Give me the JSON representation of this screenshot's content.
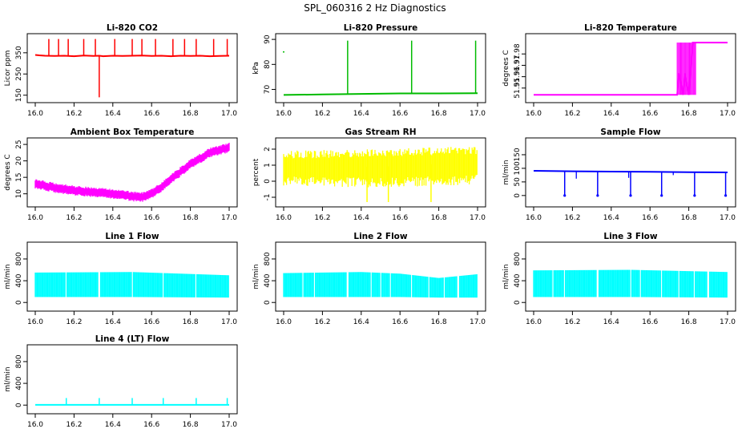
{
  "figure": {
    "title": "SPL_060316  2 Hz Diagnostics"
  },
  "chart_data": [
    {
      "type": "line",
      "title": "Li-820 CO2",
      "ylabel": "Licor ppm",
      "color": "#ff0000",
      "xlim": [
        16.0,
        17.0
      ],
      "ylim": [
        130,
        425
      ],
      "xticks": [
        "16.0",
        "16.2",
        "16.4",
        "16.6",
        "16.8",
        "17.0"
      ],
      "xtick_values": [
        16.0,
        16.2,
        16.4,
        16.6,
        16.8,
        17.0
      ],
      "yticks": [
        "150",
        "250",
        "350"
      ],
      "ytick_values": [
        150,
        250,
        350
      ],
      "x": [
        16.0,
        16.02,
        16.05,
        16.1,
        16.15,
        16.2,
        16.25,
        16.3,
        16.33,
        16.35,
        16.4,
        16.45,
        16.5,
        16.55,
        16.6,
        16.65,
        16.7,
        16.75,
        16.8,
        16.85,
        16.9,
        16.95,
        17.0
      ],
      "y": [
        340,
        338,
        336,
        335,
        336,
        334,
        337,
        335,
        336,
        334,
        336,
        335,
        336,
        337,
        335,
        336,
        334,
        336,
        335,
        336,
        334,
        335,
        336
      ],
      "spikes_up": [
        16.07,
        16.12,
        16.17,
        16.25,
        16.31,
        16.41,
        16.5,
        16.55,
        16.62,
        16.71,
        16.77,
        16.83,
        16.92,
        16.99
      ],
      "spike_up_value": 415,
      "spikes_down": [
        16.33
      ],
      "spike_down_value": 140
    },
    {
      "type": "line",
      "title": "Li-820 Pressure",
      "ylabel": "kPa",
      "color": "#00bb00",
      "xlim": [
        16.0,
        17.0
      ],
      "ylim": [
        66,
        91
      ],
      "xticks": [
        "16.0",
        "16.2",
        "16.4",
        "16.6",
        "16.8",
        "17.0"
      ],
      "xtick_values": [
        16.0,
        16.2,
        16.4,
        16.6,
        16.8,
        17.0
      ],
      "yticks": [
        "70",
        "80",
        "90"
      ],
      "ytick_values": [
        70,
        80,
        90
      ],
      "x": [
        16.0,
        16.2,
        16.4,
        16.6,
        16.8,
        17.0
      ],
      "y": [
        67.8,
        68.0,
        68.2,
        68.4,
        68.4,
        68.5
      ],
      "spikes_up": [
        16.33,
        16.66,
        16.99
      ],
      "spike_up_value": 89.5,
      "outliers": [
        [
          16.0,
          85
        ]
      ]
    },
    {
      "type": "line",
      "title": "Li-820 Temperature",
      "ylabel": "degrees C",
      "color": "#ff00ff",
      "xlim": [
        16.0,
        17.0
      ],
      "ylim": [
        51.94,
        51.995
      ],
      "xticks": [
        "16.0",
        "16.2",
        "16.4",
        "16.6",
        "16.8",
        "17.0"
      ],
      "xtick_values": [
        16.0,
        16.2,
        16.4,
        16.6,
        16.8,
        17.0
      ],
      "yticks": [
        "51.95",
        "51.96",
        "51.97",
        "51.98"
      ],
      "ytick_values": [
        51.95,
        51.96,
        51.97,
        51.98
      ],
      "x": [
        16.0,
        16.74,
        16.75,
        16.77,
        16.78,
        16.8,
        16.82,
        16.84,
        17.0
      ],
      "y": [
        51.944,
        51.944,
        51.963,
        51.944,
        51.963,
        51.944,
        51.99,
        51.99,
        51.99
      ],
      "noise_band": [
        [
          16.74,
          16.84,
          51.944,
          51.99
        ]
      ]
    },
    {
      "type": "line",
      "title": "Ambient Box Temperature",
      "ylabel": "degrees C",
      "color": "#ff00ff",
      "xlim": [
        16.0,
        17.0
      ],
      "ylim": [
        7,
        26
      ],
      "xticks": [
        "16.0",
        "16.2",
        "16.4",
        "16.6",
        "16.8",
        "17.0"
      ],
      "xtick_values": [
        16.0,
        16.2,
        16.4,
        16.6,
        16.8,
        17.0
      ],
      "yticks": [
        "10",
        "15",
        "20",
        "25"
      ],
      "ytick_values": [
        10,
        15,
        20,
        25
      ],
      "x": [
        16.0,
        16.05,
        16.1,
        16.2,
        16.3,
        16.4,
        16.5,
        16.55,
        16.6,
        16.65,
        16.7,
        16.8,
        16.9,
        17.0
      ],
      "y": [
        13,
        12.5,
        11.8,
        11.0,
        10.5,
        10.0,
        9.2,
        9.0,
        10.0,
        12.0,
        14.5,
        19.0,
        22.5,
        24.0
      ],
      "band": 1.2
    },
    {
      "type": "line",
      "title": "Gas Stream RH",
      "ylabel": "percent",
      "color": "#ffff00",
      "xlim": [
        16.0,
        17.0
      ],
      "ylim": [
        -1.4,
        2.5
      ],
      "xticks": [
        "16.0",
        "16.2",
        "16.4",
        "16.6",
        "16.8",
        "17.0"
      ],
      "xtick_values": [
        16.0,
        16.2,
        16.4,
        16.6,
        16.8,
        17.0
      ],
      "yticks": [
        "-1",
        "0",
        "1",
        "2"
      ],
      "ytick_values": [
        -1,
        0,
        1,
        2
      ],
      "x": [
        16.0,
        16.5,
        17.0
      ],
      "y": [
        0.9,
        0.9,
        1.2
      ],
      "band_low": [
        -0.3,
        -0.4,
        -0.2
      ],
      "band_high": [
        1.9,
        2.0,
        2.2
      ],
      "spikes_down": [
        16.43,
        16.54,
        16.76
      ],
      "spike_down_value": -1.3
    },
    {
      "type": "line",
      "title": "Sample Flow",
      "ylabel": "ml/min",
      "color": "#0000ff",
      "xlim": [
        16.0,
        17.0
      ],
      "ylim": [
        -30,
        200
      ],
      "xticks": [
        "16.0",
        "16.2",
        "16.4",
        "16.6",
        "16.8",
        "17.0"
      ],
      "xtick_values": [
        16.0,
        16.2,
        16.4,
        16.6,
        16.8,
        17.0
      ],
      "yticks": [
        "0",
        "50",
        "100",
        "150"
      ],
      "ytick_values": [
        0,
        50,
        100,
        150
      ],
      "x": [
        16.0,
        16.2,
        16.4,
        16.6,
        16.8,
        17.0
      ],
      "y": [
        91,
        89,
        88,
        87,
        86,
        85
      ],
      "spikes_down": [
        16.16,
        16.33,
        16.5,
        16.66,
        16.83,
        16.99
      ],
      "spike_down_value": 0,
      "minor_dips": [
        [
          16.22,
          62
        ],
        [
          16.49,
          65
        ],
        [
          16.72,
          75
        ]
      ]
    },
    {
      "type": "line",
      "title": "Line 1 Flow",
      "ylabel": "ml/min",
      "color": "#00ffff",
      "xlim": [
        16.0,
        17.0
      ],
      "ylim": [
        -100,
        1050
      ],
      "xticks": [
        "16.0",
        "16.2",
        "16.4",
        "16.6",
        "16.8",
        "17.0"
      ],
      "xtick_values": [
        16.0,
        16.2,
        16.4,
        16.6,
        16.8,
        17.0
      ],
      "yticks": [
        "0",
        "400",
        "800"
      ],
      "ytick_values": [
        0,
        400,
        800
      ],
      "x": [
        16.0,
        16.5,
        17.0
      ],
      "band_low": [
        100,
        100,
        90
      ],
      "band_high": [
        550,
        560,
        500
      ],
      "gaps": [
        16.16,
        16.33,
        16.5,
        16.66,
        16.83
      ]
    },
    {
      "type": "line",
      "title": "Line 2 Flow",
      "ylabel": "ml/min",
      "color": "#00ffff",
      "xlim": [
        16.0,
        17.0
      ],
      "ylim": [
        -100,
        1050
      ],
      "xticks": [
        "16.0",
        "16.2",
        "16.4",
        "16.6",
        "16.8",
        "17.0"
      ],
      "xtick_values": [
        16.0,
        16.2,
        16.4,
        16.6,
        16.8,
        17.0
      ],
      "yticks": [
        "0",
        "400",
        "800"
      ],
      "ytick_values": [
        0,
        400,
        800
      ],
      "x": [
        16.0,
        16.4,
        16.6,
        16.8,
        17.0
      ],
      "band_low": [
        100,
        100,
        100,
        90,
        90
      ],
      "band_high": [
        540,
        560,
        530,
        450,
        520
      ],
      "gaps": [
        16.1,
        16.16,
        16.33,
        16.45,
        16.5,
        16.55,
        16.66,
        16.75,
        16.83,
        16.9
      ]
    },
    {
      "type": "line",
      "title": "Line 3 Flow",
      "ylabel": "ml/min",
      "color": "#00ffff",
      "xlim": [
        16.0,
        17.0
      ],
      "ylim": [
        -100,
        1050
      ],
      "xticks": [
        "16.0",
        "16.2",
        "16.4",
        "16.6",
        "16.8",
        "17.0"
      ],
      "xtick_values": [
        16.0,
        16.2,
        16.4,
        16.6,
        16.8,
        17.0
      ],
      "yticks": [
        "0",
        "400",
        "800"
      ],
      "ytick_values": [
        0,
        400,
        800
      ],
      "x": [
        16.0,
        16.5,
        17.0
      ],
      "band_low": [
        100,
        100,
        90
      ],
      "band_high": [
        590,
        600,
        560
      ],
      "gaps": [
        16.1,
        16.16,
        16.33,
        16.5,
        16.55,
        16.66,
        16.75,
        16.83,
        16.9
      ]
    },
    {
      "type": "line",
      "title": "Line 4 (LT) Flow",
      "ylabel": "ml/min",
      "color": "#00ffff",
      "xlim": [
        16.0,
        17.0
      ],
      "ylim": [
        -100,
        1050
      ],
      "xticks": [
        "16.0",
        "16.2",
        "16.4",
        "16.6",
        "16.8",
        "17.0"
      ],
      "xtick_values": [
        16.0,
        16.2,
        16.4,
        16.6,
        16.8,
        17.0
      ],
      "yticks": [
        "0",
        "400",
        "800"
      ],
      "ytick_values": [
        0,
        400,
        800
      ],
      "x": [
        16.0,
        17.0
      ],
      "y": [
        5,
        5
      ],
      "spikes_up": [
        16.16,
        16.33,
        16.5,
        16.66,
        16.83,
        16.99
      ],
      "spike_up_value": 130
    }
  ]
}
